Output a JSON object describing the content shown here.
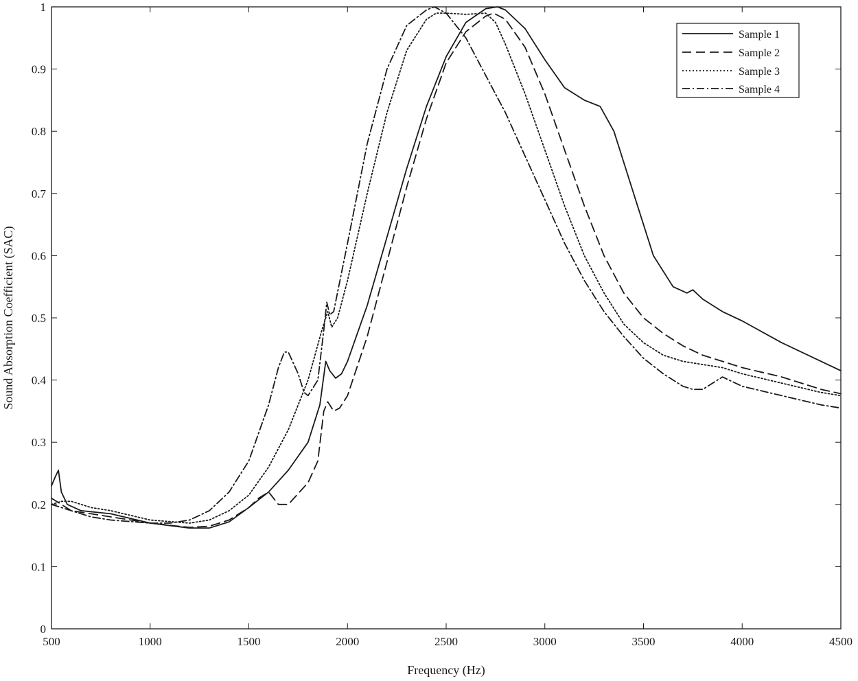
{
  "chart_data": {
    "type": "line",
    "title": "",
    "xlabel": "Frequency (Hz)",
    "ylabel": "Sound Absorption Coefficient (SAC)",
    "xlim": [
      500,
      4500
    ],
    "ylim": [
      0,
      1
    ],
    "xticks": [
      500,
      1000,
      1500,
      2000,
      2500,
      3000,
      3500,
      4000,
      4500
    ],
    "xtick_labels": [
      "500",
      "1000",
      "1500",
      "2000",
      "2500",
      "3000",
      "3500",
      "4000",
      "4500"
    ],
    "yticks": [
      0,
      0.1,
      0.2,
      0.3,
      0.4,
      0.5,
      0.6,
      0.7,
      0.8,
      0.9,
      1
    ],
    "ytick_labels": [
      "0",
      "0.1",
      "0.2",
      "0.3",
      "0.4",
      "0.5",
      "0.6",
      "0.7",
      "0.8",
      "0.9",
      "1"
    ],
    "grid": false,
    "legend_position": "top-right",
    "line_color": "#1a1a1a",
    "series": [
      {
        "name": "Sample 1",
        "style": "solid",
        "x": [
          500,
          520,
          535,
          550,
          580,
          650,
          800,
          1000,
          1200,
          1300,
          1400,
          1500,
          1600,
          1700,
          1800,
          1860,
          1890,
          1910,
          1940,
          1970,
          2000,
          2100,
          2200,
          2300,
          2400,
          2500,
          2600,
          2700,
          2760,
          2800,
          2900,
          3000,
          3100,
          3200,
          3280,
          3350,
          3450,
          3550,
          3650,
          3720,
          3750,
          3800,
          3900,
          4000,
          4200,
          4400,
          4500
        ],
        "y": [
          0.23,
          0.245,
          0.255,
          0.22,
          0.2,
          0.19,
          0.185,
          0.17,
          0.162,
          0.162,
          0.172,
          0.195,
          0.22,
          0.255,
          0.3,
          0.36,
          0.43,
          0.415,
          0.403,
          0.41,
          0.43,
          0.52,
          0.63,
          0.74,
          0.84,
          0.92,
          0.975,
          0.997,
          1.0,
          0.995,
          0.965,
          0.915,
          0.87,
          0.85,
          0.84,
          0.8,
          0.7,
          0.6,
          0.55,
          0.54,
          0.545,
          0.53,
          0.51,
          0.495,
          0.46,
          0.43,
          0.415
        ]
      },
      {
        "name": "Sample 2",
        "style": "dashed",
        "x": [
          500,
          550,
          600,
          700,
          800,
          1000,
          1200,
          1300,
          1400,
          1500,
          1550,
          1600,
          1650,
          1700,
          1800,
          1850,
          1880,
          1900,
          1930,
          1960,
          2000,
          2100,
          2200,
          2300,
          2400,
          2500,
          2600,
          2700,
          2740,
          2800,
          2900,
          3000,
          3100,
          3200,
          3300,
          3400,
          3500,
          3600,
          3700,
          3800,
          3900,
          4000,
          4200,
          4400,
          4500
        ],
        "y": [
          0.21,
          0.2,
          0.19,
          0.185,
          0.18,
          0.17,
          0.163,
          0.165,
          0.175,
          0.195,
          0.21,
          0.22,
          0.2,
          0.2,
          0.235,
          0.27,
          0.35,
          0.365,
          0.35,
          0.355,
          0.375,
          0.47,
          0.59,
          0.71,
          0.82,
          0.91,
          0.96,
          0.985,
          0.99,
          0.98,
          0.935,
          0.86,
          0.77,
          0.68,
          0.6,
          0.54,
          0.5,
          0.475,
          0.455,
          0.44,
          0.43,
          0.42,
          0.405,
          0.385,
          0.378
        ]
      },
      {
        "name": "Sample 3",
        "style": "dotted",
        "x": [
          500,
          550,
          600,
          700,
          800,
          1000,
          1200,
          1300,
          1400,
          1500,
          1600,
          1700,
          1800,
          1870,
          1900,
          1920,
          1950,
          2000,
          2100,
          2200,
          2300,
          2400,
          2450,
          2500,
          2600,
          2700,
          2750,
          2800,
          2900,
          3000,
          3100,
          3200,
          3300,
          3400,
          3500,
          3600,
          3700,
          3800,
          3900,
          4000,
          4200,
          4400,
          4500
        ],
        "y": [
          0.2,
          0.205,
          0.205,
          0.195,
          0.19,
          0.175,
          0.17,
          0.175,
          0.19,
          0.215,
          0.26,
          0.32,
          0.4,
          0.48,
          0.51,
          0.485,
          0.5,
          0.56,
          0.7,
          0.83,
          0.93,
          0.98,
          0.99,
          0.99,
          0.988,
          0.99,
          0.975,
          0.94,
          0.86,
          0.77,
          0.68,
          0.6,
          0.54,
          0.49,
          0.46,
          0.44,
          0.43,
          0.425,
          0.42,
          0.41,
          0.395,
          0.38,
          0.375
        ]
      },
      {
        "name": "Sample 4",
        "style": "dashdot",
        "x": [
          500,
          550,
          600,
          700,
          800,
          1000,
          1100,
          1200,
          1300,
          1400,
          1500,
          1600,
          1650,
          1680,
          1700,
          1750,
          1780,
          1800,
          1850,
          1880,
          1895,
          1910,
          1930,
          2000,
          2100,
          2200,
          2300,
          2400,
          2440,
          2500,
          2600,
          2700,
          2800,
          2900,
          3000,
          3100,
          3200,
          3300,
          3400,
          3500,
          3600,
          3700,
          3750,
          3800,
          3900,
          4000,
          4200,
          4400,
          4500
        ],
        "y": [
          0.2,
          0.195,
          0.19,
          0.18,
          0.175,
          0.17,
          0.17,
          0.175,
          0.19,
          0.22,
          0.27,
          0.36,
          0.42,
          0.445,
          0.445,
          0.41,
          0.38,
          0.375,
          0.4,
          0.48,
          0.525,
          0.505,
          0.51,
          0.62,
          0.78,
          0.9,
          0.97,
          0.995,
          1.0,
          0.99,
          0.95,
          0.89,
          0.83,
          0.76,
          0.69,
          0.62,
          0.56,
          0.51,
          0.47,
          0.435,
          0.41,
          0.39,
          0.385,
          0.385,
          0.405,
          0.39,
          0.375,
          0.36,
          0.355
        ]
      }
    ]
  }
}
